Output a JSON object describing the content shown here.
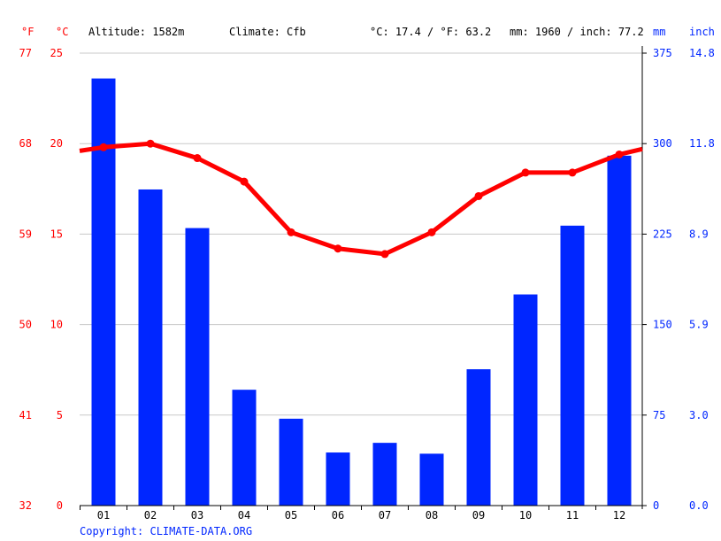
{
  "header": {
    "unit_f": "°F",
    "unit_c": "°C",
    "altitude": "Altitude: 1582m",
    "climate": "Climate: Cfb",
    "temp_avg": "°C: 17.4 / °F: 63.2",
    "precip_avg": "mm: 1960 / inch: 77.2",
    "unit_mm": "mm",
    "unit_inch": "inch"
  },
  "copyright": "Copyright: CLIMATE-DATA.ORG",
  "colors": {
    "temperature": "#ff0000",
    "precipitation": "#0026ff",
    "grid": "#c8c8c8",
    "axis_text_temp": "#ff0000",
    "axis_text_precip": "#0026ff",
    "text": "#000000"
  },
  "chart_data": {
    "type": "bar+line",
    "categories": [
      "01",
      "02",
      "03",
      "04",
      "05",
      "06",
      "07",
      "08",
      "09",
      "10",
      "11",
      "12"
    ],
    "precipitation_mm": [
      354,
      262,
      230,
      96,
      72,
      44,
      52,
      43,
      113,
      175,
      232,
      290
    ],
    "temperature_c": [
      19.8,
      20.0,
      19.2,
      17.9,
      15.1,
      14.2,
      13.9,
      15.1,
      17.1,
      18.4,
      18.4,
      19.4
    ],
    "temperature_c_edges": [
      19.6,
      19.7
    ],
    "ylim_temp_c": [
      0,
      25
    ],
    "ylim_precip_mm": [
      0,
      375
    ],
    "ticks_f": [
      "32",
      "41",
      "50",
      "59",
      "68",
      "77"
    ],
    "ticks_c": [
      "0",
      "5",
      "10",
      "15",
      "20",
      "25"
    ],
    "ticks_mm": [
      "0",
      "75",
      "150",
      "225",
      "300",
      "375"
    ],
    "ticks_inch": [
      "0.0",
      "3.0",
      "5.9",
      "8.9",
      "11.8",
      "14.8"
    ],
    "grid": true
  }
}
